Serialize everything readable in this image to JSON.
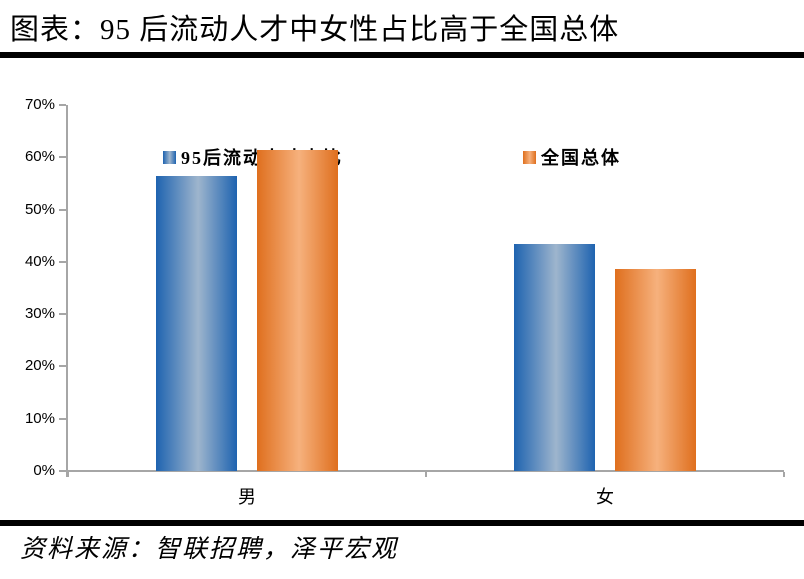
{
  "title": "图表：95 后流动人才中女性占比高于全国总体",
  "source": "资料来源：智联招聘，泽平宏观",
  "colors": {
    "series1_edge": "#1e63b0",
    "series1_mid": "#9eb5cd",
    "series2_edge": "#df6f1e",
    "series2_mid": "#f6b17d",
    "axis": "#a6a6a6",
    "rule": "#000000"
  },
  "chart_data": {
    "type": "bar",
    "categories": [
      "男",
      "女"
    ],
    "series": [
      {
        "name": "95后流动人才占比",
        "values": [
          56.5,
          43.5
        ],
        "edge_color": "#1e63b0",
        "mid_color": "#9eb5cd"
      },
      {
        "name": "全国总体",
        "values": [
          61.3,
          38.7
        ],
        "edge_color": "#df6f1e",
        "mid_color": "#f6b17d"
      }
    ],
    "ylabel": "",
    "xlabel": "",
    "ylim": [
      0,
      70
    ],
    "ytick_step": 10,
    "ytick_labels": [
      "0%",
      "10%",
      "20%",
      "30%",
      "40%",
      "50%",
      "60%",
      "70%"
    ],
    "legend_position": "top",
    "grid": false
  }
}
